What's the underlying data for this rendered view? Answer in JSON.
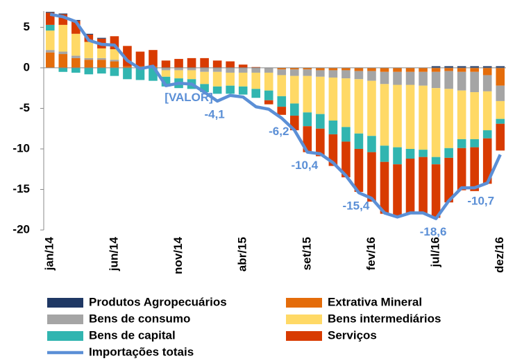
{
  "chart_data": {
    "type": "stacked-bar-line",
    "categories": [
      "jan/14",
      null,
      null,
      null,
      null,
      "jun/14",
      null,
      null,
      null,
      null,
      "nov/14",
      null,
      null,
      null,
      null,
      "abr/15",
      null,
      null,
      null,
      null,
      "set/15",
      null,
      null,
      null,
      null,
      "fev/16",
      null,
      null,
      null,
      null,
      "jul/16",
      null,
      null,
      null,
      null,
      "dez/16"
    ],
    "ylim": [
      -20,
      7
    ],
    "yticks": [
      -20,
      -15,
      -10,
      -5,
      0,
      5
    ],
    "grid": false,
    "series": [
      {
        "name": "Produtos Agropecuários",
        "color": "#1f3864",
        "values": [
          0.1,
          0.1,
          0.1,
          0.1,
          0.1,
          0,
          0,
          0,
          0,
          0,
          0,
          0,
          0,
          0,
          0,
          0,
          0,
          0,
          0,
          0,
          0,
          0,
          0,
          0,
          0,
          0,
          0,
          0,
          0,
          0,
          0.2,
          0.2,
          0.2,
          0.2,
          0.2,
          0.2
        ]
      },
      {
        "name": "Extrativa Mineral",
        "color": "#e46c0a",
        "values": [
          1.9,
          1.7,
          1.2,
          1.0,
          1.0,
          0.8,
          0.2,
          0.2,
          0.2,
          0,
          0,
          0,
          0,
          0,
          0,
          0,
          0,
          0,
          -0.2,
          -0.2,
          -0.2,
          -0.3,
          -0.3,
          -0.3,
          -0.4,
          -0.4,
          -0.5,
          -0.5,
          -0.5,
          -0.5,
          -0.5,
          -0.4,
          -0.5,
          -0.5,
          -0.9,
          -2.2
        ]
      },
      {
        "name": "Bens de consumo",
        "color": "#a5a5a5",
        "values": [
          0.3,
          0.3,
          0.3,
          0.2,
          0.2,
          0.2,
          0,
          0,
          0,
          -0.3,
          -0.3,
          -0.3,
          -0.5,
          -0.5,
          -0.6,
          -0.6,
          -0.6,
          -0.6,
          -0.7,
          -0.8,
          -0.8,
          -0.8,
          -0.9,
          -1.0,
          -1.0,
          -1.2,
          -1.5,
          -1.6,
          -1.6,
          -1.7,
          -2.0,
          -2.2,
          -2.3,
          -2.5,
          -2.0,
          -1.9
        ]
      },
      {
        "name": "Bens intermediários",
        "color": "#ffd966",
        "values": [
          2.4,
          3.3,
          2.7,
          2.0,
          1.2,
          1.3,
          0,
          0,
          0,
          -0.8,
          -1.0,
          -1.1,
          -1.5,
          -1.8,
          -1.6,
          -1.7,
          -2.0,
          -2.2,
          -2.6,
          -3.4,
          -4.5,
          -4.6,
          -5.3,
          -6.0,
          -6.7,
          -6.8,
          -7.6,
          -7.7,
          -7.9,
          -7.9,
          -8.5,
          -7.3,
          -6.0,
          -5.8,
          -4.8,
          -2.2
        ]
      },
      {
        "name": "Bens de capital",
        "color": "#31b5b0",
        "values": [
          0.7,
          -0.5,
          -0.6,
          -0.8,
          -0.7,
          -1.0,
          -1.4,
          -1.5,
          -1.6,
          -1.2,
          -1.2,
          -1.2,
          -1.0,
          -0.9,
          -1.0,
          -1.0,
          -1.1,
          -1.2,
          -1.3,
          -1.5,
          -1.7,
          -1.8,
          -1.7,
          -1.8,
          -1.9,
          -2.0,
          -2.0,
          -2.1,
          -1.2,
          -0.9,
          -0.9,
          -1.2,
          -1.1,
          -1.0,
          -1.0,
          -0.6
        ]
      },
      {
        "name": "Serviços",
        "color": "#d83b01",
        "values": [
          1.5,
          1.3,
          1.6,
          0.9,
          1.2,
          1.6,
          2.5,
          1.8,
          2.0,
          0.9,
          1.1,
          1.2,
          1.2,
          0.9,
          0.8,
          0.4,
          0.1,
          -0.5,
          -1.0,
          -1.8,
          -3.2,
          -3.4,
          -3.9,
          -4.4,
          -5.3,
          -6.1,
          -6.4,
          -6.3,
          -6.7,
          -7.0,
          -6.6,
          -5.5,
          -5.2,
          -5.4,
          -5.6,
          -3.3
        ]
      }
    ],
    "line": {
      "name": "Importações totais",
      "color": "#5b8fd6",
      "values": [
        6.6,
        6.3,
        5.7,
        3.4,
        2.9,
        2.8,
        0.9,
        -0.1,
        0.2,
        -2.2,
        -1.9,
        -2.0,
        -3.0,
        -4.1,
        -3.4,
        -3.6,
        -4.8,
        -5.1,
        -6.2,
        -7.7,
        -10.4,
        -10.6,
        -11.7,
        -13.3,
        -15.4,
        -16.1,
        -17.9,
        -18.4,
        -17.9,
        -17.9,
        -18.6,
        -16.4,
        -14.8,
        -14.8,
        -14.2,
        -10.7
      ],
      "value_labels": [
        null,
        null,
        null,
        null,
        null,
        null,
        null,
        null,
        null,
        null,
        null,
        "[VALOR]",
        null,
        "-4,1",
        null,
        null,
        null,
        null,
        "-6,2",
        null,
        "-10,4",
        null,
        null,
        null,
        "-15,4",
        null,
        null,
        null,
        null,
        null,
        "-18,6",
        null,
        null,
        null,
        null,
        "-10,7"
      ]
    }
  }
}
